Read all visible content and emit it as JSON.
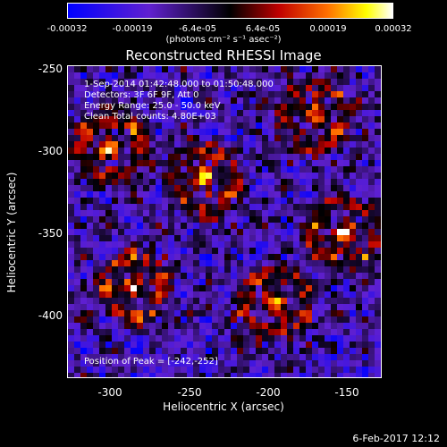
{
  "colorbar": {
    "ticks": [
      "-0.00032",
      "-0.00019",
      "-6.4e-05",
      "6.4e-05",
      "0.00019",
      "0.00032"
    ],
    "units": "(photons cm⁻² s⁻¹ asec⁻²)"
  },
  "title": "Reconstructed RHESSI Image",
  "annotations": {
    "time": "1-Sep-2014 01:42:48.000 to 01:50:48.000",
    "detectors": "Detectors: 3F 6F 9F, Att 0",
    "energy": "Energy Range: 25.0 - 50.0 keV",
    "clean": "Clean     Total counts: 4.80E+03",
    "peak": "Position of Peak = [-242,-252]"
  },
  "axes": {
    "xlabel": "Heliocentric X (arcsec)",
    "ylabel": "Heliocentric Y (arcsec)",
    "xticks": [
      "-300",
      "-250",
      "-200",
      "-150"
    ],
    "yticks": [
      "-250",
      "-300",
      "-350",
      "-400"
    ]
  },
  "footer": {
    "date": "6-Feb-2017 12:12"
  },
  "chart_data": {
    "type": "heatmap",
    "title": "Reconstructed RHESSI Image",
    "xlabel": "Heliocentric X (arcsec)",
    "ylabel": "Heliocentric Y (arcsec)",
    "xlim": [
      -330,
      -130
    ],
    "ylim": [
      -445,
      -245
    ],
    "color_range": [
      -0.00032,
      0.00032
    ],
    "peak": [
      -242,
      -252
    ],
    "bright_sources": [
      [
        -245,
        -315
      ],
      [
        -305,
        -295
      ],
      [
        -155,
        -350
      ],
      [
        -200,
        -395
      ],
      [
        -290,
        -385
      ],
      [
        -175,
        -275
      ]
    ]
  }
}
